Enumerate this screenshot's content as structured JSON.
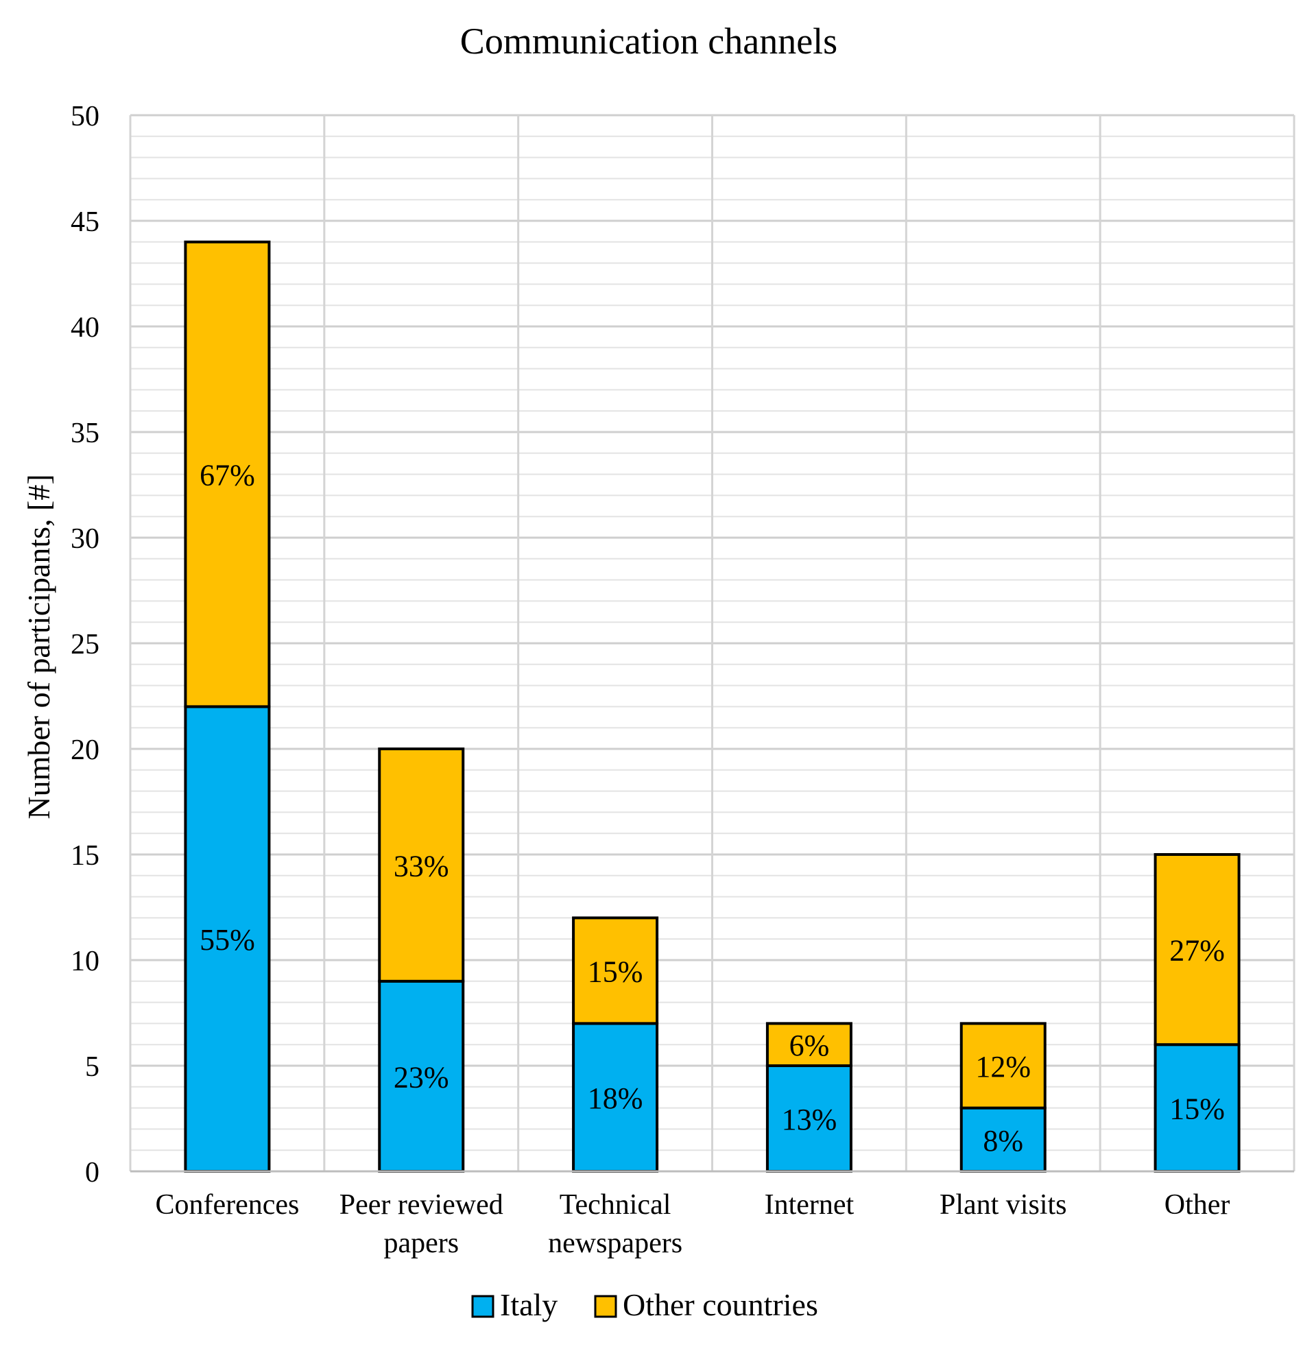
{
  "chart_data": {
    "type": "bar",
    "stacked": true,
    "title": "Communication channels",
    "xlabel": "",
    "ylabel": "Number of participants, [#]",
    "ylim": [
      0,
      50
    ],
    "major_tick_step": 5,
    "minor_tick_step": 1,
    "grid": true,
    "legend_position": "bottom-center",
    "categories": [
      [
        "Conferences"
      ],
      [
        "Peer reviewed",
        "papers"
      ],
      [
        "Technical",
        "newspapers"
      ],
      [
        "Internet"
      ],
      [
        "Plant visits"
      ],
      [
        "Other"
      ]
    ],
    "series": [
      {
        "name": "Italy",
        "color": "#00B0F0",
        "values": [
          22,
          9,
          7,
          5,
          3,
          6
        ],
        "labels": [
          "55%",
          "23%",
          "18%",
          "13%",
          "8%",
          "15%"
        ]
      },
      {
        "name": "Other countries",
        "color": "#FFC000",
        "values": [
          22,
          11,
          5,
          2,
          4,
          9
        ],
        "labels": [
          "67%",
          "33%",
          "15%",
          "6%",
          "12%",
          "27%"
        ]
      }
    ]
  }
}
